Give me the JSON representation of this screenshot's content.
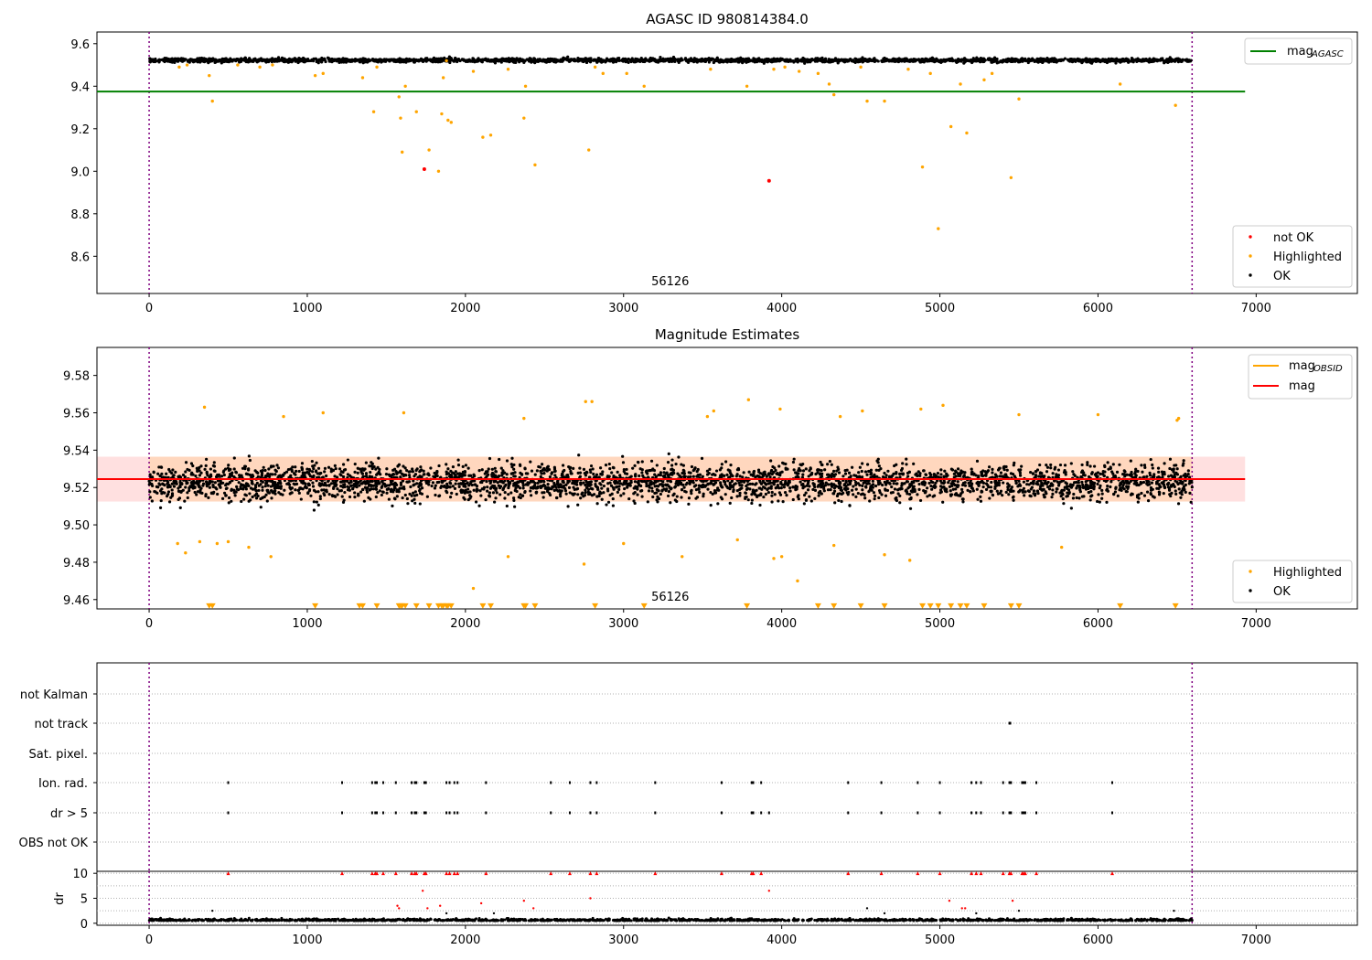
{
  "chart_data": [
    {
      "type": "scatter",
      "title": "AGASC ID 980814384.0",
      "xlim": [
        -330,
        7640
      ],
      "ylim": [
        8.425,
        9.655
      ],
      "x_ticks": [
        0,
        1000,
        2000,
        3000,
        4000,
        5000,
        6000,
        7000
      ],
      "y_ticks": [
        8.6,
        8.8,
        9.0,
        9.2,
        9.4,
        9.6
      ],
      "vertical_lines_x": [
        0,
        6595
      ],
      "obsid_label": {
        "text": "56126",
        "x": 3295
      },
      "series": [
        {
          "name": "mag_AGASC",
          "kind": "line",
          "color": "#008000",
          "y": 9.375,
          "x_range": [
            -330,
            6930
          ]
        },
        {
          "name": "OK",
          "kind": "band_points",
          "color": "#000000",
          "x_range": [
            0,
            6595
          ],
          "center": 9.522,
          "spread": 0.012
        },
        {
          "name": "Highlighted",
          "kind": "points",
          "color": "#ffa500",
          "x": [
            190,
            240,
            380,
            400,
            560,
            700,
            780,
            1050,
            1100,
            1350,
            1420,
            1440,
            1580,
            1590,
            1600,
            1620,
            1690,
            1770,
            1830,
            1850,
            1860,
            1880,
            1890,
            1910,
            2050,
            2110,
            2160,
            2270,
            2370,
            2380,
            2440,
            2780,
            2820,
            2870,
            3020,
            3130,
            3550,
            3780,
            3950,
            4020,
            4110,
            4230,
            4300,
            4330,
            4500,
            4540,
            4650,
            4800,
            4890,
            4940,
            4990,
            5070,
            5130,
            5170,
            5280,
            5330,
            5450,
            5500,
            6140,
            6490
          ],
          "y": [
            9.49,
            9.5,
            9.45,
            9.33,
            9.5,
            9.49,
            9.5,
            9.45,
            9.46,
            9.44,
            9.28,
            9.49,
            9.35,
            9.25,
            9.09,
            9.4,
            9.28,
            9.1,
            9.0,
            9.27,
            9.44,
            9.52,
            9.24,
            9.23,
            9.47,
            9.16,
            9.17,
            9.48,
            9.25,
            9.4,
            9.03,
            9.1,
            9.49,
            9.46,
            9.46,
            9.4,
            9.48,
            9.4,
            9.48,
            9.49,
            9.47,
            9.46,
            9.41,
            9.36,
            9.49,
            9.33,
            9.33,
            9.48,
            9.02,
            9.46,
            8.73,
            9.21,
            9.41,
            9.18,
            9.43,
            9.46,
            8.97,
            9.34,
            9.41,
            9.31
          ]
        },
        {
          "name": "not OK",
          "kind": "points",
          "color": "#ff0000",
          "x": [
            1740,
            3920
          ],
          "y": [
            9.01,
            8.955
          ]
        }
      ],
      "legend_top": [
        {
          "label": "mag",
          "sub": "AGASC",
          "color": "#008000"
        }
      ],
      "legend_bottom": [
        {
          "label": "not OK",
          "color": "#ff0000"
        },
        {
          "label": "Highlighted",
          "color": "#ffa500"
        },
        {
          "label": "OK",
          "color": "#000000"
        }
      ]
    },
    {
      "type": "scatter",
      "title": "Magnitude Estimates",
      "xlim": [
        -330,
        7640
      ],
      "ylim": [
        9.455,
        9.595
      ],
      "x_ticks": [
        0,
        1000,
        2000,
        3000,
        4000,
        5000,
        6000,
        7000
      ],
      "y_ticks": [
        9.46,
        9.48,
        9.5,
        9.52,
        9.54,
        9.56,
        9.58
      ],
      "vertical_lines_x": [
        0,
        6595
      ],
      "obsid_label": {
        "text": "56126",
        "x": 3295
      },
      "series": [
        {
          "name": "mag",
          "kind": "line",
          "color": "#ff0000",
          "y": 9.5245,
          "x_range": [
            -330,
            6930
          ],
          "band": [
            9.5125,
            9.5365
          ]
        },
        {
          "name": "mag_OBSID",
          "kind": "line",
          "color": "#ffa500",
          "y": 9.5245,
          "x_range": [
            0,
            6595
          ]
        },
        {
          "name": "OK",
          "kind": "band_points",
          "color": "#000000",
          "x_range": [
            0,
            6595
          ],
          "center": 9.523,
          "spread": 0.009
        },
        {
          "name": "Highlighted",
          "kind": "points",
          "color": "#ffa500",
          "x": [
            180,
            230,
            320,
            350,
            430,
            500,
            630,
            770,
            850,
            1100,
            1610,
            2050,
            2270,
            2370,
            2750,
            2760,
            2800,
            3000,
            3370,
            3530,
            3570,
            3720,
            3790,
            3950,
            3990,
            4000,
            4100,
            4330,
            4370,
            4510,
            4650,
            4810,
            4880,
            5020,
            5500,
            5770,
            6000,
            6500,
            6510
          ],
          "y": [
            9.49,
            9.485,
            9.491,
            9.563,
            9.49,
            9.491,
            9.488,
            9.483,
            9.558,
            9.56,
            9.56,
            9.466,
            9.483,
            9.557,
            9.479,
            9.566,
            9.566,
            9.49,
            9.483,
            9.558,
            9.561,
            9.492,
            9.567,
            9.482,
            9.562,
            9.483,
            9.47,
            9.489,
            9.558,
            9.561,
            9.484,
            9.481,
            9.562,
            9.564,
            9.559,
            9.488,
            9.559,
            9.556,
            9.557
          ]
        },
        {
          "name": "Highlighted (below axis)",
          "kind": "triangles",
          "color": "#ffa500",
          "x": [
            380,
            400,
            1050,
            1330,
            1350,
            1440,
            1580,
            1590,
            1600,
            1620,
            1690,
            1770,
            1830,
            1850,
            1860,
            1880,
            1890,
            1910,
            2110,
            2160,
            2370,
            2380,
            2440,
            2820,
            3130,
            3780,
            4230,
            4330,
            4500,
            4650,
            4890,
            4940,
            4990,
            5070,
            5130,
            5170,
            5280,
            5450,
            5500,
            6140,
            6490
          ],
          "y": 9.4565
        }
      ],
      "legend_top": [
        {
          "label": "mag",
          "sub": "OBSID",
          "color": "#ffa500"
        },
        {
          "label": "mag",
          "sub": "",
          "color": "#ff0000"
        }
      ],
      "legend_bottom": [
        {
          "label": "Highlighted",
          "color": "#ffa500"
        },
        {
          "label": "OK",
          "color": "#000000"
        }
      ]
    },
    {
      "type": "scatter",
      "title": "",
      "xlim": [
        -330,
        7640
      ],
      "x_ticks": [
        0,
        1000,
        2000,
        3000,
        4000,
        5000,
        6000,
        7000
      ],
      "vertical_lines_x": [
        0,
        6595
      ],
      "flag_rows": [
        "not Kalman",
        "not track",
        "Sat. pixel.",
        "Ion. rad.",
        "dr > 5",
        "OBS not OK"
      ],
      "flag_points": {
        "not track": [
          5440,
          5445
        ],
        "Ion. rad.": [
          500,
          1220,
          1410,
          1430,
          1440,
          1480,
          1560,
          1660,
          1680,
          1690,
          1740,
          1750,
          1880,
          1900,
          1930,
          1950,
          2130,
          2540,
          2660,
          2790,
          2830,
          3200,
          3620,
          3810,
          3820,
          3870,
          4420,
          4630,
          4860,
          5000,
          5200,
          5230,
          5260,
          5400,
          5440,
          5450,
          5520,
          5530,
          5540,
          5610,
          6090
        ],
        "dr > 5": [
          500,
          1220,
          1410,
          1430,
          1440,
          1480,
          1560,
          1660,
          1680,
          1690,
          1740,
          1750,
          1880,
          1900,
          1930,
          1950,
          2130,
          2540,
          2660,
          2790,
          2830,
          3200,
          3620,
          3810,
          3820,
          3870,
          3920,
          4420,
          4630,
          4860,
          5000,
          5200,
          5230,
          5260,
          5400,
          5440,
          5450,
          5520,
          5530,
          5540,
          5610,
          6090
        ]
      },
      "dr": {
        "ylabel": "dr",
        "ylim": [
          -0.4,
          10.4
        ],
        "y_ticks": [
          0,
          5,
          10
        ],
        "base_center": 0.5,
        "clipped_x": [
          500,
          1220,
          1410,
          1430,
          1440,
          1480,
          1560,
          1660,
          1680,
          1690,
          1740,
          1750,
          1880,
          1900,
          1930,
          1950,
          2130,
          2540,
          2660,
          2790,
          2830,
          3200,
          3620,
          3810,
          3820,
          3870,
          4420,
          4630,
          4860,
          5000,
          5200,
          5230,
          5260,
          5400,
          5440,
          5450,
          5520,
          5530,
          5540,
          5610,
          6090
        ],
        "red_x": [
          1570,
          1580,
          1730,
          1760,
          1840,
          2100,
          2370,
          2430,
          2790,
          3920,
          5060,
          5140,
          5160,
          5460
        ],
        "red_y": [
          3.5,
          3.0,
          6.5,
          3.0,
          3.5,
          4.0,
          4.5,
          3.0,
          5.0,
          6.5,
          4.5,
          3.0,
          3.0,
          4.5
        ],
        "black_x": [
          400,
          1880,
          2180,
          4540,
          4650,
          5230,
          5500,
          6480
        ],
        "black_y": [
          2.5,
          2.0,
          2.0,
          3.0,
          2.0,
          2.0,
          2.5,
          2.5
        ]
      }
    }
  ]
}
